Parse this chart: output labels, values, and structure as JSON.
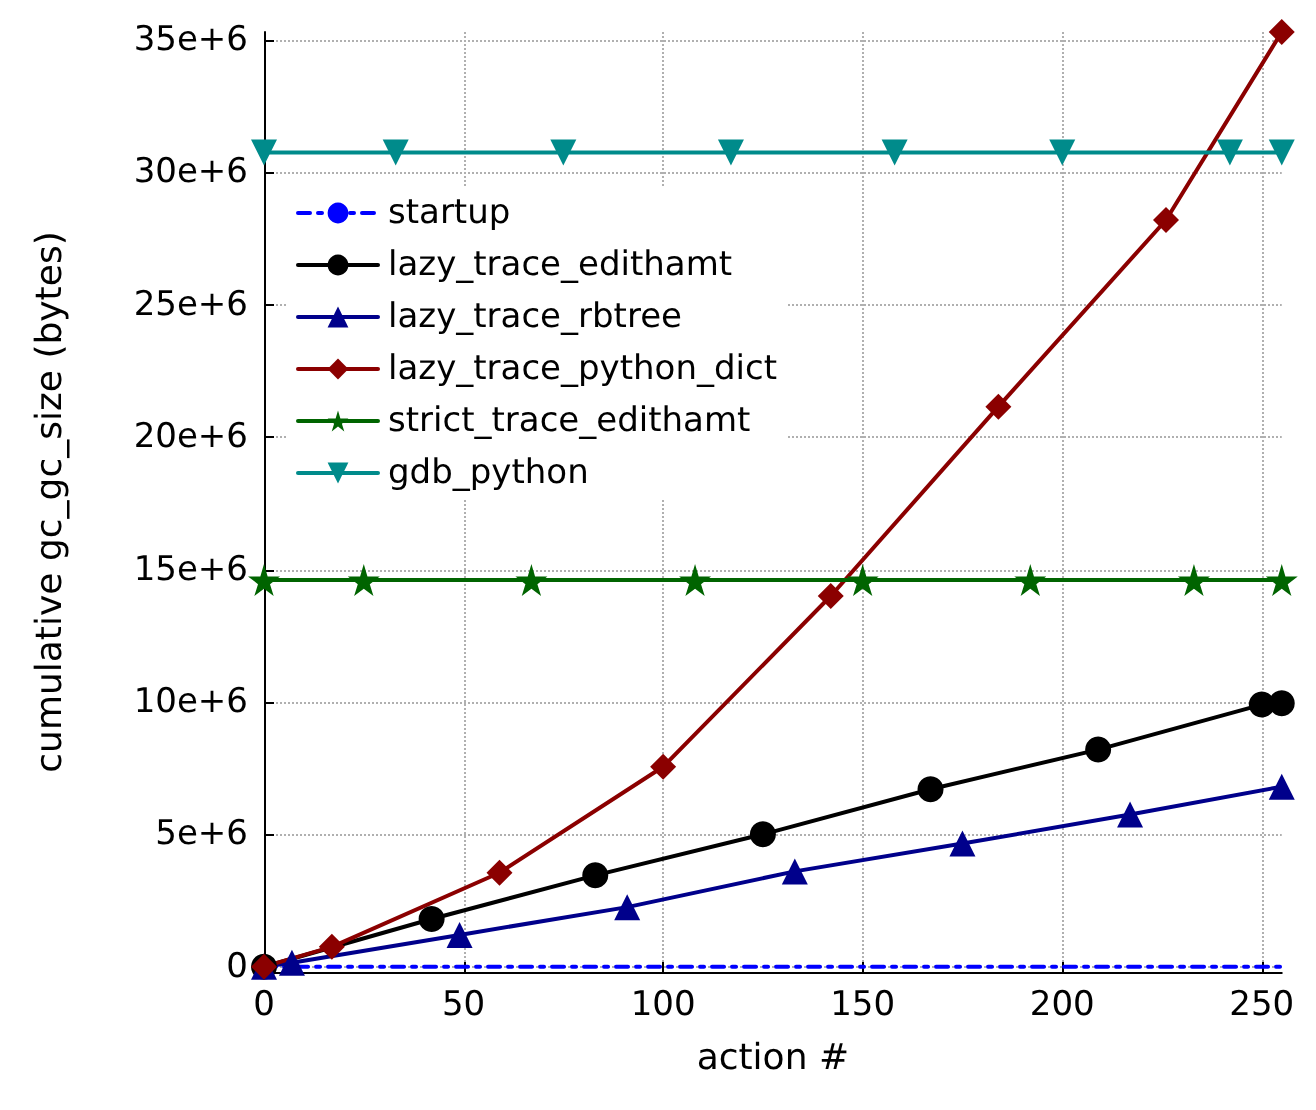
{
  "chart_data": {
    "type": "line",
    "xlabel": "action #",
    "ylabel": "cumulative gc_gc_size (bytes)",
    "xlim": [
      0,
      255
    ],
    "xticks": [
      0,
      50,
      100,
      150,
      200,
      250
    ],
    "ylim": [
      -200000,
      35300000
    ],
    "yticks": [
      0,
      {
        "value": 5000000,
        "label": "5e+6"
      },
      {
        "value": 10000000,
        "label": "10e+6"
      },
      {
        "value": 15000000,
        "label": "15e+6"
      },
      {
        "value": 20000000,
        "label": "20e+6"
      },
      {
        "value": 25000000,
        "label": "25e+6"
      },
      {
        "value": 30000000,
        "label": "30e+6"
      },
      {
        "value": 35000000,
        "label": "35e+6"
      }
    ],
    "grid": true,
    "legend": "top left",
    "series": [
      {
        "name": "startup",
        "color": "#0000ff",
        "marker": "none",
        "line_style": "dashed",
        "x": [
          0,
          255
        ],
        "values": [
          0,
          0
        ]
      },
      {
        "name": "lazy_trace_edithamt",
        "color": "#000000",
        "marker": "circle",
        "x": [
          0,
          42,
          83,
          125,
          167,
          209,
          250,
          255
        ],
        "values": [
          0,
          1800000,
          3450000,
          5000000,
          6700000,
          8200000,
          9900000,
          9950000
        ]
      },
      {
        "name": "lazy_trace_rbtree",
        "color": "#00008b",
        "marker": "triangle",
        "x": [
          0,
          7,
          49,
          91,
          133,
          175,
          217,
          255
        ],
        "values": [
          0,
          150000,
          1200000,
          2250000,
          3600000,
          4650000,
          5750000,
          6800000
        ]
      },
      {
        "name": "lazy_trace_python_dict",
        "color": "#8b0000",
        "marker": "diamond",
        "x": [
          0,
          17,
          59,
          100,
          142,
          184,
          226,
          255
        ],
        "values": [
          0,
          750000,
          3550000,
          7550000,
          14000000,
          21150000,
          28200000,
          35300000
        ]
      },
      {
        "name": "strict_trace_edithamt",
        "color": "#006400",
        "marker": "star",
        "x": [
          0,
          25,
          67,
          108,
          150,
          192,
          233,
          255
        ],
        "values": [
          14600000,
          14600000,
          14600000,
          14600000,
          14600000,
          14600000,
          14600000,
          14600000
        ]
      },
      {
        "name": "gdb_python",
        "color": "#008b8b",
        "marker": "triangle_down",
        "x": [
          0,
          33,
          75,
          117,
          158,
          200,
          242,
          255
        ],
        "values": [
          30750000,
          30750000,
          30750000,
          30750000,
          30750000,
          30750000,
          30750000,
          30750000
        ]
      }
    ]
  }
}
